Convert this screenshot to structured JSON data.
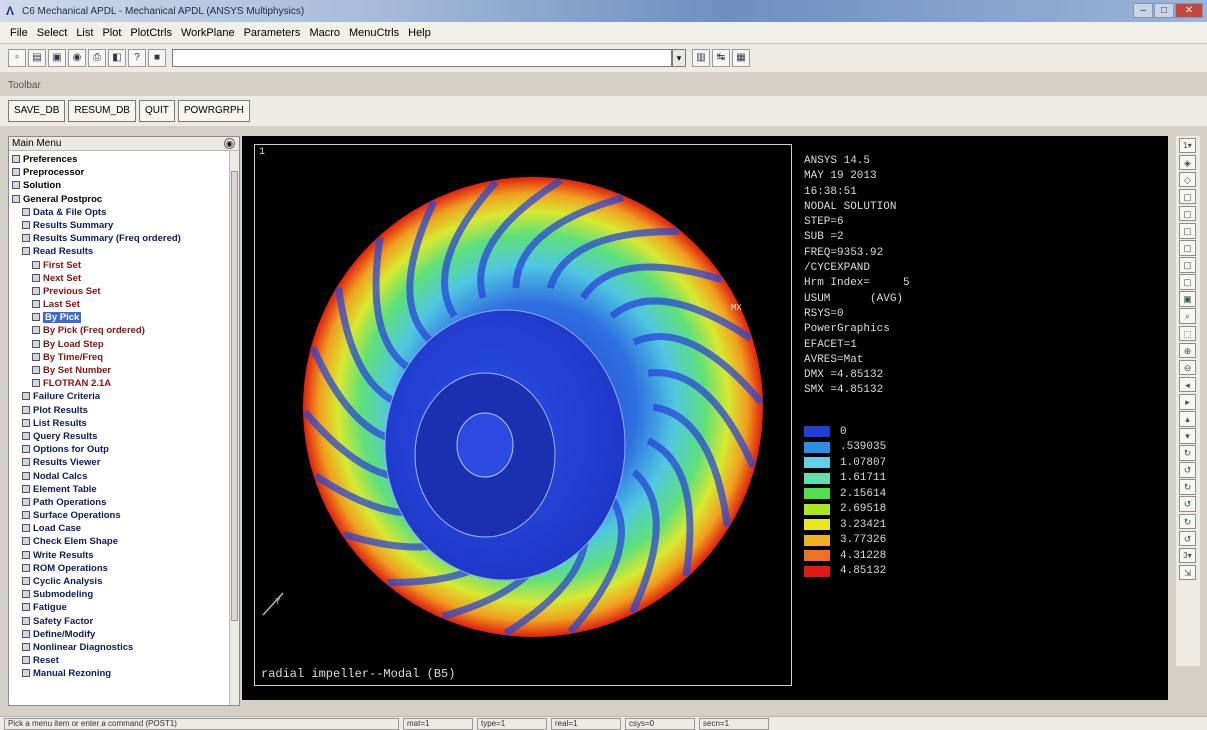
{
  "window": {
    "title": "C6 Mechanical APDL - Mechanical APDL (ANSYS Multiphysics)"
  },
  "menubar": {
    "items": [
      "File",
      "Select",
      "List",
      "Plot",
      "PlotCtrls",
      "WorkPlane",
      "Parameters",
      "Macro",
      "MenuCtrls",
      "Help"
    ]
  },
  "command": {
    "value": ""
  },
  "toolbar": {
    "label": "Toolbar",
    "buttons": [
      "SAVE_DB",
      "RESUM_DB",
      "QUIT",
      "POWRGRPH"
    ]
  },
  "main_menu": {
    "title": "Main Menu",
    "items": [
      {
        "label": "Preferences",
        "level": 0
      },
      {
        "label": "Preprocessor",
        "level": 0
      },
      {
        "label": "Solution",
        "level": 0
      },
      {
        "label": "General Postproc",
        "level": 0
      },
      {
        "label": "Data & File Opts",
        "level": 1
      },
      {
        "label": "Results Summary",
        "level": 1
      },
      {
        "label": "Results Summary (Freq ordered)",
        "level": 1
      },
      {
        "label": "Read Results",
        "level": 1
      },
      {
        "label": "First Set",
        "level": 2
      },
      {
        "label": "Next Set",
        "level": 2
      },
      {
        "label": "Previous Set",
        "level": 2
      },
      {
        "label": "Last Set",
        "level": 2
      },
      {
        "label": "By Pick",
        "level": 2,
        "selected": true
      },
      {
        "label": "By Pick (Freq ordered)",
        "level": 2
      },
      {
        "label": "By Load Step",
        "level": 2
      },
      {
        "label": "By Time/Freq",
        "level": 2
      },
      {
        "label": "By Set Number",
        "level": 2
      },
      {
        "label": "FLOTRAN 2.1A",
        "level": 2
      },
      {
        "label": "Failure Criteria",
        "level": 1
      },
      {
        "label": "Plot Results",
        "level": 1
      },
      {
        "label": "List Results",
        "level": 1
      },
      {
        "label": "Query Results",
        "level": 1
      },
      {
        "label": "Options for Outp",
        "level": 1
      },
      {
        "label": "Results Viewer",
        "level": 1
      },
      {
        "label": "Nodal Calcs",
        "level": 1
      },
      {
        "label": "Element Table",
        "level": 1
      },
      {
        "label": "Path Operations",
        "level": 1
      },
      {
        "label": "Surface Operations",
        "level": 1
      },
      {
        "label": "Load Case",
        "level": 1
      },
      {
        "label": "Check Elem Shape",
        "level": 1
      },
      {
        "label": "Write Results",
        "level": 1
      },
      {
        "label": "ROM Operations",
        "level": 1
      },
      {
        "label": "Cyclic Analysis",
        "level": 1
      },
      {
        "label": "Submodeling",
        "level": 1
      },
      {
        "label": "Fatigue",
        "level": 1
      },
      {
        "label": "Safety Factor",
        "level": 1
      },
      {
        "label": "Define/Modify",
        "level": 1
      },
      {
        "label": "Nonlinear Diagnostics",
        "level": 1
      },
      {
        "label": "Reset",
        "level": 1
      },
      {
        "label": "Manual Rezoning",
        "level": 1
      }
    ]
  },
  "graphics": {
    "window_number": "1",
    "info_lines": [
      "ANSYS 14.5",
      "MAY 19 2013",
      "16:38:51",
      "NODAL SOLUTION",
      "STEP=6",
      "SUB =2",
      "FREQ=9353.92",
      "/CYCEXPAND",
      "Hrm Index=     5",
      "USUM      (AVG)",
      "RSYS=0",
      "PowerGraphics",
      "EFACET=1",
      "AVRES=Mat",
      "DMX =4.85132",
      "SMX =4.85132"
    ],
    "legend": [
      {
        "value": "0",
        "color": "#1f3fd6"
      },
      {
        "value": ".539035",
        "color": "#2f8fe8"
      },
      {
        "value": "1.07807",
        "color": "#5fd0e8"
      },
      {
        "value": "1.61711",
        "color": "#60e0b0"
      },
      {
        "value": "2.15614",
        "color": "#4ce04c"
      },
      {
        "value": "2.69518",
        "color": "#a8e820"
      },
      {
        "value": "3.23421",
        "color": "#e8e820"
      },
      {
        "value": "3.77326",
        "color": "#f0b020"
      },
      {
        "value": "4.31228",
        "color": "#f07020"
      },
      {
        "value": "4.85132",
        "color": "#e01a10"
      }
    ],
    "mx_label": "MX",
    "axis_label": "Y",
    "caption": "radial impeller--Modal (B5)"
  },
  "right_toolbar": {
    "window_selector": "1",
    "zoom_selector": "3"
  },
  "statusbar": {
    "prompt": "Pick a menu item or enter a command (POST1)",
    "cells": [
      "mat=1",
      "type=1",
      "real=1",
      "csys=0",
      "secn=1"
    ]
  }
}
